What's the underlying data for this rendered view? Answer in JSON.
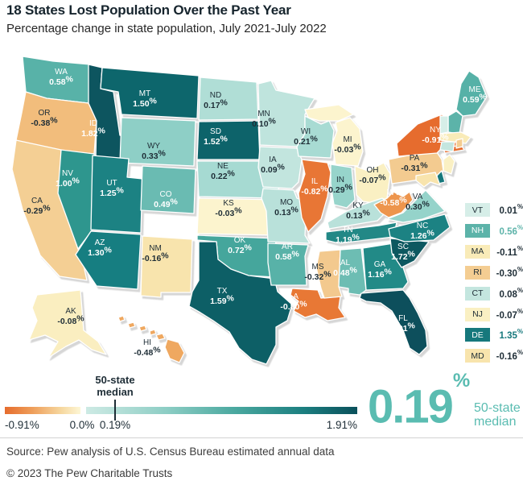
{
  "header": {
    "title": "18 States Lost Population Over the Past Year",
    "subtitle": "Percentage change in state population, July 2021-July 2022"
  },
  "chart_data": {
    "type": "heatmap",
    "subtype": "us-state-choropleth",
    "title": "18 States Lost Population Over the Past Year",
    "unit": "%",
    "value_range": {
      "min": -0.91,
      "max": 1.91
    },
    "median": 0.19,
    "states": [
      {
        "abbr": "WA",
        "value": 0.58
      },
      {
        "abbr": "OR",
        "value": -0.38
      },
      {
        "abbr": "CA",
        "value": -0.29
      },
      {
        "abbr": "AK",
        "value": -0.08
      },
      {
        "abbr": "HI",
        "value": -0.48
      },
      {
        "abbr": "ID",
        "value": 1.82
      },
      {
        "abbr": "NV",
        "value": 1.0
      },
      {
        "abbr": "MT",
        "value": 1.5
      },
      {
        "abbr": "WY",
        "value": 0.33
      },
      {
        "abbr": "UT",
        "value": 1.25
      },
      {
        "abbr": "CO",
        "value": 0.49
      },
      {
        "abbr": "AZ",
        "value": 1.3
      },
      {
        "abbr": "NM",
        "value": -0.16
      },
      {
        "abbr": "ND",
        "value": 0.17
      },
      {
        "abbr": "SD",
        "value": 1.52
      },
      {
        "abbr": "NE",
        "value": 0.22
      },
      {
        "abbr": "KS",
        "value": -0.03
      },
      {
        "abbr": "OK",
        "value": 0.72
      },
      {
        "abbr": "TX",
        "value": 1.59
      },
      {
        "abbr": "MN",
        "value": 0.1
      },
      {
        "abbr": "IA",
        "value": 0.09
      },
      {
        "abbr": "MO",
        "value": 0.13
      },
      {
        "abbr": "AR",
        "value": 0.58
      },
      {
        "abbr": "LA",
        "value": -0.8
      },
      {
        "abbr": "WI",
        "value": 0.21
      },
      {
        "abbr": "IL",
        "value": -0.82
      },
      {
        "abbr": "MS",
        "value": -0.32
      },
      {
        "abbr": "MI",
        "value": -0.03
      },
      {
        "abbr": "IN",
        "value": 0.29
      },
      {
        "abbr": "OH",
        "value": -0.07
      },
      {
        "abbr": "KY",
        "value": 0.13
      },
      {
        "abbr": "TN",
        "value": 1.19
      },
      {
        "abbr": "AL",
        "value": 0.48
      },
      {
        "abbr": "GA",
        "value": 1.16
      },
      {
        "abbr": "FL",
        "value": 1.91
      },
      {
        "abbr": "SC",
        "value": 1.72
      },
      {
        "abbr": "NC",
        "value": 1.26
      },
      {
        "abbr": "VA",
        "value": 0.3
      },
      {
        "abbr": "WV",
        "value": -0.58
      },
      {
        "abbr": "PA",
        "value": -0.31
      },
      {
        "abbr": "NY",
        "value": -0.91
      },
      {
        "abbr": "NJ",
        "value": -0.07
      },
      {
        "abbr": "DE",
        "value": 1.35
      },
      {
        "abbr": "MD",
        "value": -0.16
      },
      {
        "abbr": "ME",
        "value": 0.59
      },
      {
        "abbr": "NH",
        "value": 0.56
      },
      {
        "abbr": "VT",
        "value": 0.01
      },
      {
        "abbr": "MA",
        "value": -0.11
      },
      {
        "abbr": "RI",
        "value": -0.3
      },
      {
        "abbr": "CT",
        "value": 0.08
      }
    ],
    "sidebar_legend_order": [
      "VT",
      "NH",
      "MA",
      "RI",
      "CT",
      "NJ",
      "DE",
      "MD"
    ],
    "colors": {
      "negative_max": "#e66c2d",
      "zero": "#fdf6d5",
      "positive_low": "#d9efe9",
      "positive_max": "#0a505b",
      "accent_teal": "#5abcb1",
      "dark_text": "#1e2d36"
    },
    "legend_position": "bottom"
  },
  "scale_bar": {
    "min_label": "-0.91%",
    "zero_label": "0.0%",
    "median_label": "0.19%",
    "max_label": "1.91%",
    "median_note_line1": "50-state",
    "median_note_line2": "median"
  },
  "median_callout": {
    "value": "0.19",
    "unit": "%",
    "caption_line1": "50-state",
    "caption_line2": "median"
  },
  "footer": {
    "source": "Source: Pew analysis of U.S. Census Bureau estimated annual data",
    "copyright": "© 2023 The Pew Charitable Trusts"
  }
}
